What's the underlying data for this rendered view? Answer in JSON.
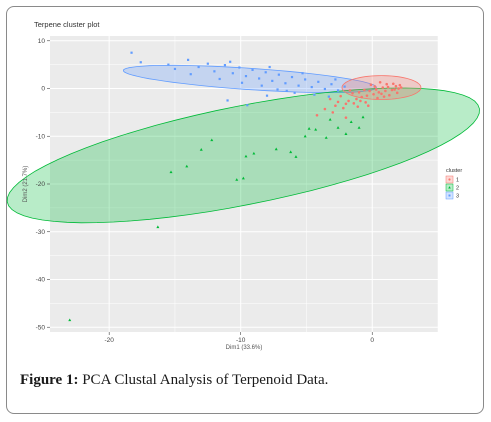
{
  "caption": {
    "label": "Figure 1:",
    "text": "PCA Clustal Analysis of Terpenoid Data."
  },
  "chart_data": {
    "type": "scatter",
    "title": "Terpene cluster plot",
    "xlabel": "Dim1 (33.6%)",
    "ylabel": "Dim2 (21.7%)",
    "xlim": [
      -24.5,
      5
    ],
    "ylim": [
      -51,
      11
    ],
    "xticks": [
      -20,
      -10,
      0
    ],
    "yticks": [
      10,
      0,
      -10,
      -20,
      -30,
      -40,
      -50
    ],
    "grid": true,
    "legend": {
      "title": "cluster",
      "position": "right",
      "entries": [
        "1",
        "2",
        "3"
      ]
    },
    "colors": {
      "1": "#f8766d",
      "2": "#00ba38",
      "3": "#619cff",
      "panel": "#ebebeb"
    },
    "ellipses": [
      {
        "cluster": "3",
        "center": [
          -9.3,
          2.0
        ],
        "half_major": 9.8,
        "half_minor": 2.2,
        "angle_deg": -11
      },
      {
        "cluster": "2",
        "center": [
          -9.8,
          -14.0
        ],
        "half_major": 21.0,
        "half_minor": 9.0,
        "angle_deg": 35
      },
      {
        "cluster": "1",
        "center": [
          0.7,
          0.2
        ],
        "half_major": 3.0,
        "half_minor": 2.5,
        "angle_deg": 0
      }
    ],
    "series": [
      {
        "name": "1",
        "marker": "circle",
        "points": [
          [
            2.2,
            0.2
          ],
          [
            2.0,
            0.0
          ],
          [
            1.8,
            0.5
          ],
          [
            1.5,
            -0.3
          ],
          [
            1.2,
            0.3
          ],
          [
            1.0,
            -0.5
          ],
          [
            0.8,
            0.2
          ],
          [
            0.5,
            -0.8
          ],
          [
            0.3,
            -0.2
          ],
          [
            0.1,
            -1.2
          ],
          [
            -0.2,
            -0.5
          ],
          [
            -0.4,
            -1.5
          ],
          [
            -0.6,
            -0.3
          ],
          [
            -0.8,
            -1.8
          ],
          [
            -1.0,
            -0.8
          ],
          [
            -1.2,
            -2.2
          ],
          [
            -1.5,
            -1.0
          ],
          [
            -1.8,
            -2.6
          ],
          [
            -2.0,
            -3.2
          ],
          [
            -2.4,
            -1.6
          ],
          [
            -2.8,
            -3.6
          ],
          [
            -3.2,
            -2.2
          ],
          [
            -3.6,
            -4.3
          ],
          [
            -4.2,
            -5.6
          ],
          [
            1.6,
            1.0
          ],
          [
            0.6,
            1.3
          ],
          [
            -0.1,
            0.8
          ],
          [
            1.9,
            -0.9
          ],
          [
            1.3,
            -1.4
          ],
          [
            0.4,
            -2.0
          ],
          [
            -0.9,
            -2.6
          ],
          [
            -1.4,
            -3.1
          ],
          [
            -2.2,
            -4.1
          ],
          [
            0.9,
            -1.7
          ],
          [
            2.1,
            0.7
          ],
          [
            -0.5,
            -2.9
          ],
          [
            1.1,
            0.9
          ],
          [
            -1.7,
            -0.4
          ],
          [
            0.2,
            0.4
          ],
          [
            -2.6,
            -2.8
          ],
          [
            1.7,
            -0.2
          ],
          [
            -0.3,
            -3.6
          ],
          [
            0.7,
            -1.1
          ],
          [
            -1.1,
            -3.8
          ],
          [
            -3.0,
            -5.0
          ],
          [
            -2.0,
            -6.1
          ]
        ]
      },
      {
        "name": "2",
        "marker": "triangle",
        "points": [
          [
            -23.0,
            -48.5
          ],
          [
            -16.3,
            -29.0
          ],
          [
            -15.3,
            -17.5
          ],
          [
            -14.1,
            -16.3
          ],
          [
            -13.0,
            -12.8
          ],
          [
            -12.2,
            -10.8
          ],
          [
            -10.3,
            -19.1
          ],
          [
            -9.8,
            -18.8
          ],
          [
            -9.6,
            -14.2
          ],
          [
            -9.0,
            -13.6
          ],
          [
            -7.3,
            -12.7
          ],
          [
            -6.2,
            -13.3
          ],
          [
            -5.8,
            -14.3
          ],
          [
            -5.1,
            -10.0
          ],
          [
            -4.3,
            -8.6
          ],
          [
            -3.5,
            -10.3
          ],
          [
            -2.6,
            -8.2
          ],
          [
            -2.0,
            -9.5
          ],
          [
            -1.6,
            -7.0
          ],
          [
            -1.0,
            -8.2
          ],
          [
            -3.2,
            -6.5
          ],
          [
            -0.7,
            -6.0
          ],
          [
            -4.8,
            -8.4
          ]
        ]
      },
      {
        "name": "3",
        "marker": "square",
        "points": [
          [
            -18.3,
            7.5
          ],
          [
            -17.6,
            5.5
          ],
          [
            -15.5,
            5.0
          ],
          [
            -14.0,
            6.0
          ],
          [
            -13.2,
            4.5
          ],
          [
            -12.5,
            5.2
          ],
          [
            -12.0,
            3.6
          ],
          [
            -11.2,
            4.9
          ],
          [
            -10.6,
            3.2
          ],
          [
            -10.1,
            4.4
          ],
          [
            -9.6,
            2.6
          ],
          [
            -9.1,
            3.9
          ],
          [
            -8.6,
            2.1
          ],
          [
            -8.1,
            3.4
          ],
          [
            -7.6,
            1.6
          ],
          [
            -7.1,
            2.9
          ],
          [
            -6.6,
            1.1
          ],
          [
            -6.1,
            2.4
          ],
          [
            -5.6,
            0.6
          ],
          [
            -5.1,
            1.9
          ],
          [
            -4.6,
            0.3
          ],
          [
            -4.1,
            1.4
          ],
          [
            -3.6,
            -0.1
          ],
          [
            -3.1,
            0.9
          ],
          [
            -2.6,
            -0.4
          ],
          [
            -2.1,
            0.4
          ],
          [
            -11.0,
            -2.5
          ],
          [
            -9.5,
            -3.5
          ],
          [
            -8.0,
            -1.5
          ],
          [
            -6.5,
            -0.5
          ],
          [
            -13.8,
            3.0
          ],
          [
            -11.6,
            2.0
          ],
          [
            -9.9,
            1.2
          ],
          [
            -8.4,
            0.6
          ],
          [
            -7.2,
            -0.2
          ],
          [
            -5.9,
            -0.9
          ],
          [
            -4.4,
            -1.3
          ],
          [
            -3.3,
            -1.7
          ],
          [
            -15.0,
            4.1
          ],
          [
            -10.8,
            5.6
          ],
          [
            -7.8,
            4.5
          ],
          [
            -5.3,
            3.2
          ],
          [
            -2.8,
            1.9
          ]
        ]
      }
    ]
  }
}
